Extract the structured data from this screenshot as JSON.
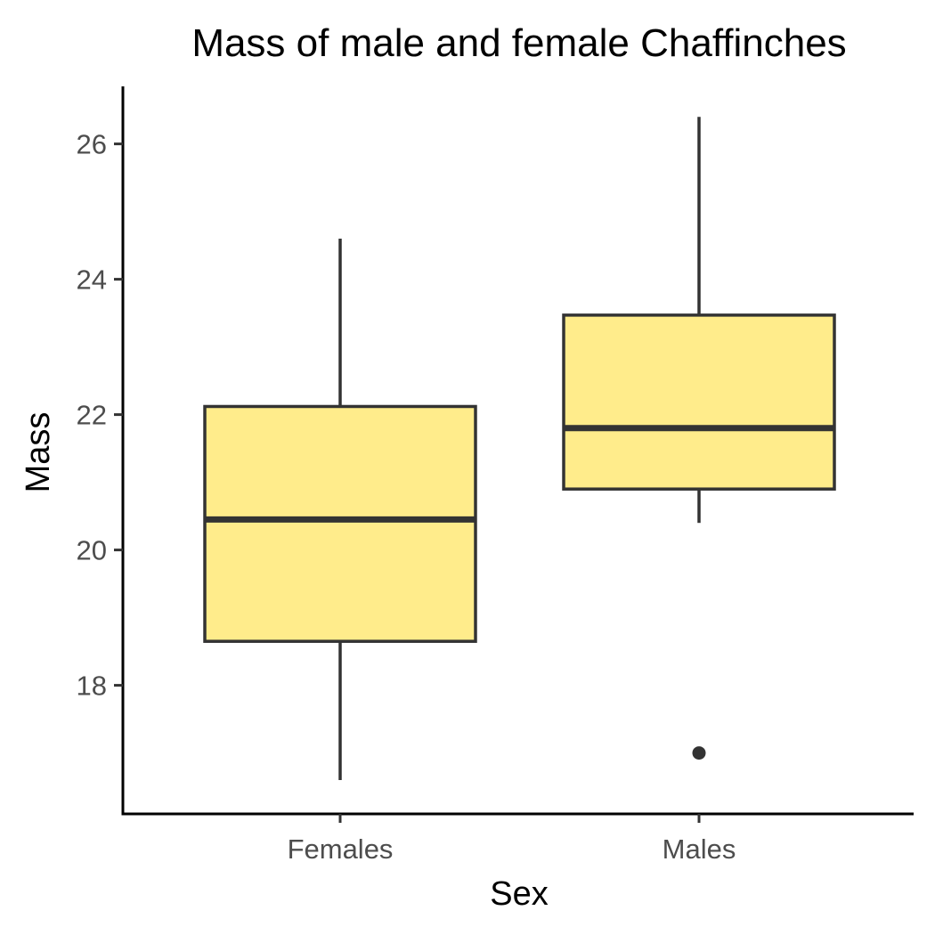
{
  "chart_data": {
    "type": "boxplot",
    "title": "Mass of male and female Chaffinches",
    "xlabel": "Sex",
    "ylabel": "Mass",
    "categories": [
      "Females",
      "Males"
    ],
    "boxes": [
      {
        "category": "Females",
        "whisker_low": 16.6,
        "q1": 18.65,
        "median": 20.45,
        "q3": 22.12,
        "whisker_high": 24.6,
        "outliers": []
      },
      {
        "category": "Males",
        "whisker_low": 20.4,
        "q1": 20.9,
        "median": 21.8,
        "q3": 23.47,
        "whisker_high": 26.4,
        "outliers": [
          17.0
        ]
      }
    ],
    "yticks": [
      18,
      20,
      22,
      24,
      26
    ],
    "ytick_labels": [
      "18",
      "20",
      "22",
      "24",
      "26"
    ],
    "ylim": [
      16.1,
      26.85
    ],
    "grid": false,
    "legend": "none",
    "colors": {
      "box_fill": "#ffec8b",
      "box_stroke": "#333333",
      "axis": "#000000"
    }
  }
}
